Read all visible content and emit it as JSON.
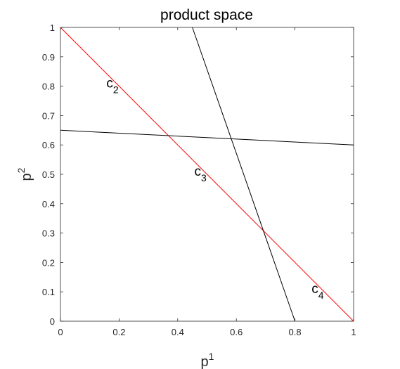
{
  "chart_data": {
    "type": "line",
    "title": "product space",
    "xlabel": {
      "base": "p",
      "sup": "1"
    },
    "ylabel": {
      "base": "p",
      "sup": "2"
    },
    "xlim": [
      0,
      1
    ],
    "ylim": [
      0,
      1
    ],
    "xticks": [
      0,
      0.2,
      0.4,
      0.6,
      0.8,
      1
    ],
    "xtick_labels": [
      "0",
      "0.2",
      "0.4",
      "0.6",
      "0.8",
      "1"
    ],
    "yticks": [
      0,
      0.1,
      0.2,
      0.3,
      0.4,
      0.5,
      0.6,
      0.7,
      0.8,
      0.9,
      1
    ],
    "ytick_labels": [
      "0",
      "0.1",
      "0.2",
      "0.3",
      "0.4",
      "0.5",
      "0.6",
      "0.7",
      "0.8",
      "0.9",
      "1"
    ],
    "grid": false,
    "series": [
      {
        "name": "red line",
        "color": "#ff0000",
        "x": [
          0,
          1
        ],
        "y": [
          1,
          0
        ]
      },
      {
        "name": "steep line",
        "color": "#000000",
        "x": [
          0.45,
          0.8
        ],
        "y": [
          1,
          0
        ]
      },
      {
        "name": "flat line",
        "color": "#000000",
        "x": [
          0,
          1
        ],
        "y": [
          0.65,
          0.6
        ]
      }
    ],
    "annotations": [
      {
        "base": "c",
        "sub": "2",
        "x": 0.2,
        "y": 0.8
      },
      {
        "base": "c",
        "sub": "3",
        "x": 0.5,
        "y": 0.5
      },
      {
        "base": "c",
        "sub": "4",
        "x": 0.9,
        "y": 0.1
      }
    ]
  }
}
